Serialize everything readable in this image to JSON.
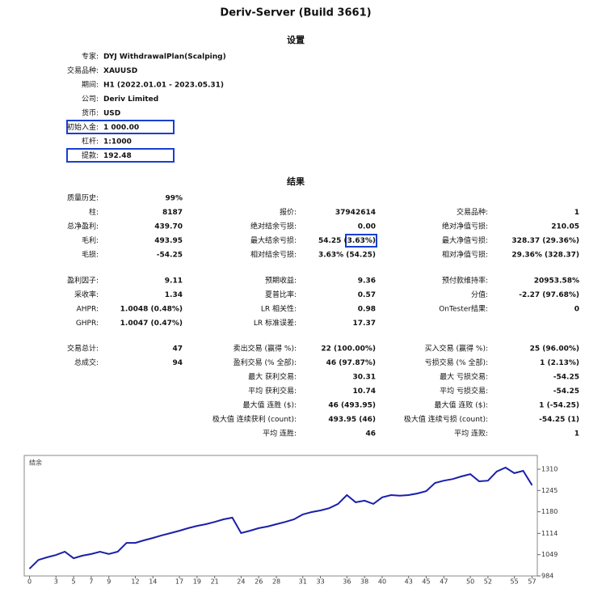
{
  "header": {
    "title": "Deriv-Server (Build 3661)"
  },
  "settings": {
    "heading": "设置",
    "rows": [
      {
        "label": "专家:",
        "value": "DYJ WithdrawalPlan(Scalping)"
      },
      {
        "label": "交易品种:",
        "value": "XAUUSD"
      },
      {
        "label": "期间:",
        "value": "H1 (2022.01.01 - 2023.05.31)"
      },
      {
        "label": "公司:",
        "value": "Deriv Limited"
      },
      {
        "label": "货币:",
        "value": "USD"
      },
      {
        "label": "初始入金:",
        "value": "1 000.00"
      },
      {
        "label": "杠杆:",
        "value": "1:1000"
      },
      {
        "label": "提款:",
        "value": "192.48"
      }
    ]
  },
  "results": {
    "heading": "结果",
    "groups": [
      [
        [
          [
            "质量历史:",
            "99%"
          ],
          null,
          null
        ],
        [
          [
            "柱:",
            "8187"
          ],
          [
            "报价:",
            "37942614"
          ],
          [
            "交易品种:",
            "1"
          ]
        ],
        [
          [
            "总净盈利:",
            "439.70"
          ],
          [
            "绝对结余亏损:",
            "0.00"
          ],
          [
            "绝对净值亏损:",
            "210.05"
          ]
        ],
        [
          [
            "毛利:",
            "493.95"
          ],
          [
            "最大结余亏损:",
            "54.25 (3.63%)"
          ],
          [
            "最大净值亏损:",
            "328.37 (29.36%)"
          ]
        ],
        [
          [
            "毛损:",
            "-54.25"
          ],
          [
            "相对结余亏损:",
            "3.63% (54.25)"
          ],
          [
            "相对净值亏损:",
            "29.36% (328.37)"
          ]
        ]
      ],
      [
        [
          [
            "盈利因子:",
            "9.11"
          ],
          [
            "预期收益:",
            "9.36"
          ],
          [
            "预付款维持率:",
            "20953.58%"
          ]
        ],
        [
          [
            "采收率:",
            "1.34"
          ],
          [
            "夏普比率:",
            "0.57"
          ],
          [
            "分值:",
            "-2.27 (97.68%)"
          ]
        ],
        [
          [
            "AHPR:",
            "1.0048 (0.48%)"
          ],
          [
            "LR 相关性:",
            "0.98"
          ],
          [
            "OnTester结果:",
            "0"
          ]
        ],
        [
          [
            "GHPR:",
            "1.0047 (0.47%)"
          ],
          [
            "LR 标准误差:",
            "17.37"
          ],
          null
        ]
      ],
      [
        [
          [
            "交易总计:",
            "47"
          ],
          [
            "卖出交易 (赢得 %):",
            "22 (100.00%)"
          ],
          [
            "买入交易 (赢得 %):",
            "25 (96.00%)"
          ]
        ],
        [
          [
            "总成交:",
            "94"
          ],
          [
            "盈利交易 (% 全部):",
            "46 (97.87%)"
          ],
          [
            "亏损交易 (% 全部):",
            "1 (2.13%)"
          ]
        ],
        [
          null,
          [
            "最大 获利交易:",
            "30.31"
          ],
          [
            "最大 亏损交易:",
            "-54.25"
          ]
        ],
        [
          null,
          [
            "平均 获利交易:",
            "10.74"
          ],
          [
            "平均 亏损交易:",
            "-54.25"
          ]
        ],
        [
          null,
          [
            "最大值 连胜 ($):",
            "46 (493.95)"
          ],
          [
            "最大值 连败 ($):",
            "1 (-54.25)"
          ]
        ],
        [
          null,
          [
            "极大值 连续获利 (count):",
            "493.95 (46)"
          ],
          [
            "极大值 连续亏损 (count):",
            "-54.25 (1)"
          ]
        ],
        [
          null,
          [
            "平均 连胜:",
            "46"
          ],
          [
            "平均 连败:",
            "1"
          ]
        ]
      ]
    ]
  },
  "chart_data": {
    "type": "line",
    "x": [
      0,
      1,
      2,
      3,
      4,
      5,
      6,
      7,
      8,
      9,
      10,
      11,
      12,
      13,
      14,
      15,
      16,
      17,
      18,
      19,
      20,
      21,
      22,
      23,
      24,
      25,
      26,
      27,
      28,
      29,
      30,
      31,
      32,
      33,
      34,
      35,
      36,
      37,
      38,
      39,
      40,
      41,
      42,
      43,
      44,
      45,
      46,
      47,
      48,
      49,
      50,
      51,
      52,
      53,
      54,
      55,
      56,
      57
    ],
    "series": [
      {
        "name": "结余",
        "color": "#1a1fa8",
        "values": [
          1006,
          1033,
          1041,
          1048,
          1058,
          1038,
          1046,
          1051,
          1058,
          1051,
          1058,
          1085,
          1085,
          1093,
          1100,
          1108,
          1115,
          1122,
          1130,
          1137,
          1142,
          1149,
          1157,
          1162,
          1115,
          1122,
          1130,
          1135,
          1142,
          1149,
          1157,
          1172,
          1179,
          1184,
          1191,
          1204,
          1231,
          1209,
          1214,
          1204,
          1224,
          1231,
          1229,
          1231,
          1236,
          1243,
          1268,
          1275,
          1280,
          1288,
          1295,
          1273,
          1275,
          1303,
          1315,
          1298,
          1305,
          1261
        ]
      }
    ],
    "xlim": [
      -0.6,
      57.6
    ],
    "ylim": [
      984,
      1352
    ],
    "xticks": [
      0,
      3,
      5,
      7,
      9,
      12,
      14,
      17,
      19,
      21,
      24,
      26,
      28,
      31,
      33,
      36,
      38,
      40,
      43,
      45,
      47,
      50,
      52,
      55,
      57
    ],
    "yticks": [
      984,
      1049,
      1114,
      1180,
      1245,
      1310
    ]
  }
}
